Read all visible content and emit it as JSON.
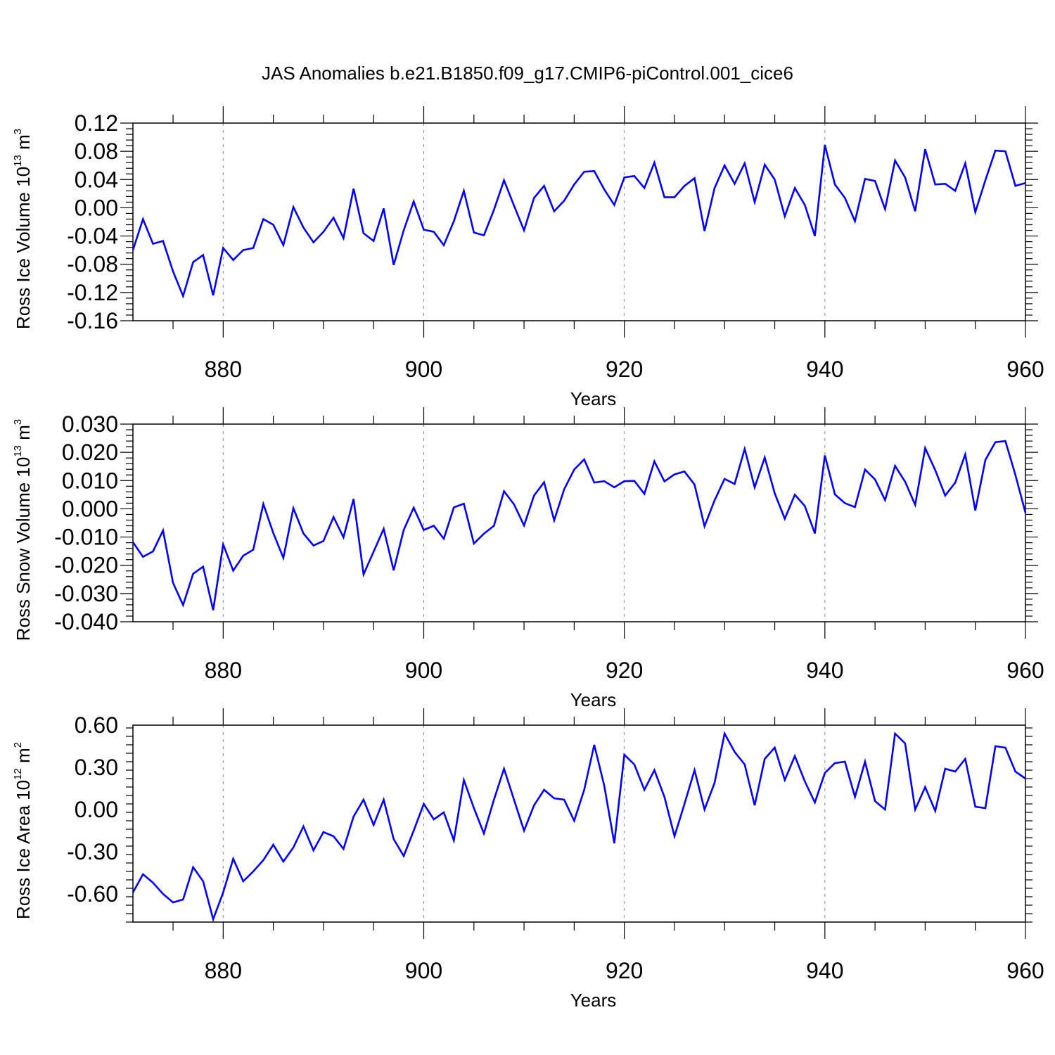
{
  "title": "JAS Anomalies b.e21.B1850.f09_g17.CMIP6-piControl.001_cice6",
  "colors": {
    "line": "#0000ff",
    "axis": "#000000",
    "grid": "#888888"
  },
  "chart_data": [
    {
      "type": "line",
      "title": "JAS Anomalies b.e21.B1850.f09_g17.CMIP6-piControl.001_cice6",
      "xlabel": "Years",
      "ylabel": {
        "base": "Ross Ice Volume 10",
        "exp": "13",
        "unit": " m",
        "unit_exp": "3"
      },
      "xlim": [
        871,
        960
      ],
      "ylim": [
        -0.16,
        0.12
      ],
      "xticks": [
        880,
        900,
        920,
        940,
        960
      ],
      "yticks": [
        0.12,
        0.08,
        0.04,
        0.0,
        -0.04,
        -0.08,
        -0.12,
        -0.16
      ],
      "ytick_labels": [
        "0.12",
        "0.08",
        "0.04",
        "0.00",
        "-0.04",
        "-0.08",
        "-0.12",
        "-0.16"
      ],
      "grid": "vertical dashed at major x ticks",
      "x": [
        871,
        872,
        873,
        874,
        875,
        876,
        877,
        878,
        879,
        880,
        881,
        882,
        883,
        884,
        885,
        886,
        887,
        888,
        889,
        890,
        891,
        892,
        893,
        894,
        895,
        896,
        897,
        898,
        899,
        900,
        901,
        902,
        903,
        904,
        905,
        906,
        907,
        908,
        909,
        910,
        911,
        912,
        913,
        914,
        915,
        916,
        917,
        918,
        919,
        920,
        921,
        922,
        923,
        924,
        925,
        926,
        927,
        928,
        929,
        930,
        931,
        932,
        933,
        934,
        935,
        936,
        937,
        938,
        939,
        940,
        941,
        942,
        943,
        944,
        945,
        946,
        947,
        948,
        949,
        950,
        951,
        952,
        953,
        954,
        955,
        956,
        957,
        958,
        959,
        960
      ],
      "y": [
        -0.06,
        -0.016,
        -0.051,
        -0.047,
        -0.09,
        -0.125,
        -0.077,
        -0.067,
        -0.124,
        -0.057,
        -0.074,
        -0.06,
        -0.057,
        -0.016,
        -0.024,
        -0.053,
        0.001,
        -0.028,
        -0.049,
        -0.034,
        -0.014,
        -0.043,
        0.027,
        -0.036,
        -0.047,
        -0.001,
        -0.081,
        -0.032,
        0.009,
        -0.031,
        -0.034,
        -0.053,
        -0.019,
        0.024,
        -0.035,
        -0.039,
        -0.003,
        0.039,
        0.003,
        -0.032,
        0.014,
        0.031,
        -0.005,
        0.01,
        0.033,
        0.051,
        0.052,
        0.026,
        0.004,
        0.043,
        0.045,
        0.028,
        0.064,
        0.015,
        0.015,
        0.031,
        0.042,
        -0.033,
        0.028,
        0.06,
        0.034,
        0.063,
        0.008,
        0.061,
        0.04,
        -0.012,
        0.028,
        0.004,
        -0.04,
        0.089,
        0.033,
        0.014,
        -0.019,
        0.041,
        0.038,
        -0.002,
        0.067,
        0.043,
        -0.005,
        0.083,
        0.033,
        0.034,
        0.024,
        0.063,
        -0.006,
        0.039,
        0.081,
        0.08,
        0.031,
        0.035
      ]
    },
    {
      "type": "line",
      "xlabel": "Years",
      "ylabel": {
        "base": "Ross Snow Volume 10",
        "exp": "13",
        "unit": " m",
        "unit_exp": "3"
      },
      "xlim": [
        871,
        960
      ],
      "ylim": [
        -0.04,
        0.03
      ],
      "xticks": [
        880,
        900,
        920,
        940,
        960
      ],
      "yticks": [
        0.03,
        0.02,
        0.01,
        0.0,
        -0.01,
        -0.02,
        -0.03,
        -0.04
      ],
      "ytick_labels": [
        "0.030",
        "0.020",
        "0.010",
        "0.000",
        "-0.010",
        "-0.020",
        "-0.030",
        "-0.040"
      ],
      "grid": "vertical dashed at major x ticks",
      "x": [
        871,
        872,
        873,
        874,
        875,
        876,
        877,
        878,
        879,
        880,
        881,
        882,
        883,
        884,
        885,
        886,
        887,
        888,
        889,
        890,
        891,
        892,
        893,
        894,
        895,
        896,
        897,
        898,
        899,
        900,
        901,
        902,
        903,
        904,
        905,
        906,
        907,
        908,
        909,
        910,
        911,
        912,
        913,
        914,
        915,
        916,
        917,
        918,
        919,
        920,
        921,
        922,
        923,
        924,
        925,
        926,
        927,
        928,
        929,
        930,
        931,
        932,
        933,
        934,
        935,
        936,
        937,
        938,
        939,
        940,
        941,
        942,
        943,
        944,
        945,
        946,
        947,
        948,
        949,
        950,
        951,
        952,
        953,
        954,
        955,
        956,
        957,
        958,
        959,
        960
      ],
      "y": [
        -0.0118,
        -0.017,
        -0.0151,
        -0.0077,
        -0.0262,
        -0.0341,
        -0.023,
        -0.0205,
        -0.0359,
        -0.0126,
        -0.0219,
        -0.0166,
        -0.0145,
        0.0017,
        -0.0086,
        -0.0174,
        0.0002,
        -0.0087,
        -0.013,
        -0.0114,
        -0.0029,
        -0.0101,
        0.0035,
        -0.0232,
        -0.0152,
        -0.0071,
        -0.0218,
        -0.0075,
        0.0004,
        -0.0075,
        -0.006,
        -0.0106,
        0.0005,
        0.0018,
        -0.0123,
        -0.0088,
        -0.006,
        0.0062,
        0.0016,
        -0.0059,
        0.0047,
        0.0094,
        -0.0041,
        0.0069,
        0.0139,
        0.0175,
        0.0093,
        0.0098,
        0.0076,
        0.0098,
        0.0099,
        0.0053,
        0.0168,
        0.0097,
        0.0122,
        0.0132,
        0.0086,
        -0.0062,
        0.003,
        0.0106,
        0.0088,
        0.0212,
        0.0076,
        0.0182,
        0.0055,
        -0.0035,
        0.005,
        0.001,
        -0.0087,
        0.0189,
        0.0051,
        0.002,
        0.0006,
        0.0139,
        0.0104,
        0.0031,
        0.0152,
        0.0096,
        0.0014,
        0.0215,
        0.0137,
        0.0047,
        0.0093,
        0.0193,
        -0.0006,
        0.0173,
        0.0236,
        0.024,
        0.012,
        -0.0014
      ]
    },
    {
      "type": "line",
      "xlabel": "Years",
      "ylabel": {
        "base": "Ross Ice Area 10",
        "exp": "12",
        "unit": " m",
        "unit_exp": "2"
      },
      "xlim": [
        871,
        960
      ],
      "ylim": [
        -0.8,
        0.6
      ],
      "xticks": [
        880,
        900,
        920,
        940,
        960
      ],
      "yticks": [
        0.6,
        0.3,
        0.0,
        -0.3,
        -0.6
      ],
      "ytick_labels": [
        "0.60",
        "0.30",
        "0.00",
        "-0.30",
        "-0.60"
      ],
      "grid": "vertical dashed at major x ticks",
      "x": [
        871,
        872,
        873,
        874,
        875,
        876,
        877,
        878,
        879,
        880,
        881,
        882,
        883,
        884,
        885,
        886,
        887,
        888,
        889,
        890,
        891,
        892,
        893,
        894,
        895,
        896,
        897,
        898,
        899,
        900,
        901,
        902,
        903,
        904,
        905,
        906,
        907,
        908,
        909,
        910,
        911,
        912,
        913,
        914,
        915,
        916,
        917,
        918,
        919,
        920,
        921,
        922,
        923,
        924,
        925,
        926,
        927,
        928,
        929,
        930,
        931,
        932,
        933,
        934,
        935,
        936,
        937,
        938,
        939,
        940,
        941,
        942,
        943,
        944,
        945,
        946,
        947,
        948,
        949,
        950,
        951,
        952,
        953,
        954,
        955,
        956,
        957,
        958,
        959,
        960
      ],
      "y": [
        -0.59,
        -0.46,
        -0.52,
        -0.6,
        -0.66,
        -0.64,
        -0.41,
        -0.51,
        -0.78,
        -0.59,
        -0.35,
        -0.51,
        -0.44,
        -0.36,
        -0.25,
        -0.37,
        -0.27,
        -0.12,
        -0.29,
        -0.16,
        -0.19,
        -0.28,
        -0.05,
        0.07,
        -0.11,
        0.07,
        -0.21,
        -0.33,
        -0.15,
        0.04,
        -0.07,
        -0.02,
        -0.22,
        0.21,
        0.01,
        -0.17,
        0.07,
        0.29,
        0.07,
        -0.15,
        0.03,
        0.14,
        0.08,
        0.07,
        -0.08,
        0.14,
        0.46,
        0.17,
        -0.24,
        0.39,
        0.32,
        0.14,
        0.28,
        0.09,
        -0.19,
        0.04,
        0.28,
        0.0,
        0.19,
        0.54,
        0.41,
        0.32,
        0.03,
        0.36,
        0.44,
        0.21,
        0.38,
        0.2,
        0.05,
        0.26,
        0.33,
        0.34,
        0.09,
        0.34,
        0.06,
        0.0,
        0.54,
        0.47,
        0.0,
        0.16,
        -0.01,
        0.29,
        0.27,
        0.36,
        0.02,
        0.01,
        0.45,
        0.44,
        0.27,
        0.22
      ]
    }
  ]
}
